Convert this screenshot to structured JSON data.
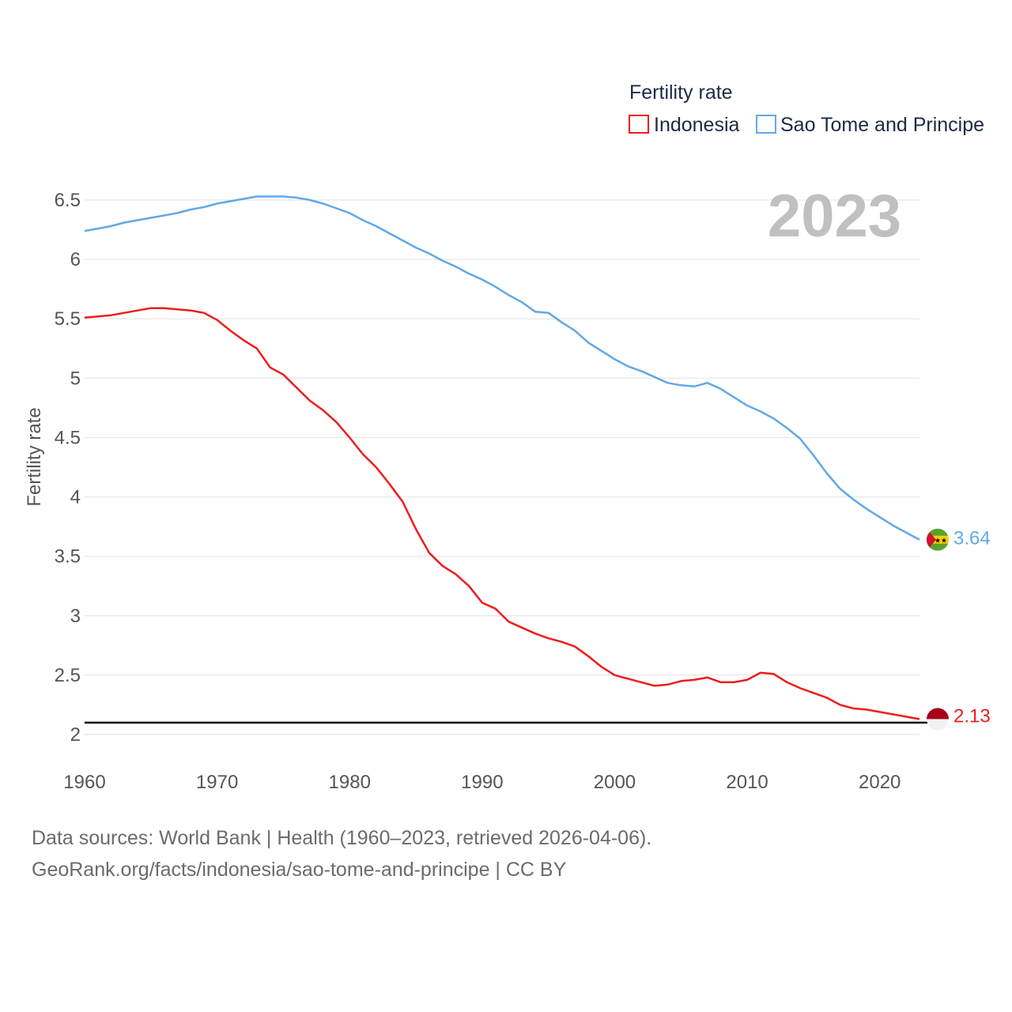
{
  "chart_data": {
    "type": "line",
    "title": "Fertility rate",
    "ylabel": "Fertility rate",
    "xlabel": "",
    "year_label": "2023",
    "xlim": [
      1960,
      2023
    ],
    "ylim": [
      1.85,
      6.75
    ],
    "x_ticks": [
      1960,
      1970,
      1980,
      1990,
      2000,
      2010,
      2020
    ],
    "y_ticks": [
      {
        "value": 2,
        "label": "2"
      },
      {
        "value": 2.5,
        "label": "2.5"
      },
      {
        "value": 3,
        "label": "3"
      },
      {
        "value": 3.5,
        "label": "3.5"
      },
      {
        "value": 4,
        "label": "4"
      },
      {
        "value": 4.5,
        "label": "4.5"
      },
      {
        "value": 5,
        "label": "5"
      },
      {
        "value": 5.5,
        "label": "5.5"
      },
      {
        "value": 6,
        "label": "6"
      },
      {
        "value": 6.5,
        "label": "6.5"
      }
    ],
    "reference_line": 2.1,
    "series": [
      {
        "name": "Indonesia",
        "color": "#ee1c1c",
        "end_label": "2.13",
        "flag": "flag-indonesia-icon",
        "x": [
          1960,
          1961,
          1962,
          1963,
          1964,
          1965,
          1966,
          1967,
          1968,
          1969,
          1970,
          1971,
          1972,
          1973,
          1974,
          1975,
          1976,
          1977,
          1978,
          1979,
          1980,
          1981,
          1982,
          1983,
          1984,
          1985,
          1986,
          1987,
          1988,
          1989,
          1990,
          1991,
          1992,
          1993,
          1994,
          1995,
          1996,
          1997,
          1998,
          1999,
          2000,
          2001,
          2002,
          2003,
          2004,
          2005,
          2006,
          2007,
          2008,
          2009,
          2010,
          2011,
          2012,
          2013,
          2014,
          2015,
          2016,
          2017,
          2018,
          2019,
          2020,
          2021,
          2022,
          2023
        ],
        "values": [
          5.51,
          5.52,
          5.53,
          5.55,
          5.57,
          5.59,
          5.59,
          5.58,
          5.57,
          5.55,
          5.49,
          5.4,
          5.32,
          5.25,
          5.09,
          5.03,
          4.92,
          4.81,
          4.73,
          4.63,
          4.5,
          4.36,
          4.25,
          4.11,
          3.96,
          3.73,
          3.53,
          3.42,
          3.35,
          3.25,
          3.11,
          3.06,
          2.95,
          2.9,
          2.85,
          2.81,
          2.78,
          2.74,
          2.66,
          2.57,
          2.5,
          2.47,
          2.44,
          2.41,
          2.42,
          2.45,
          2.46,
          2.48,
          2.44,
          2.44,
          2.46,
          2.52,
          2.51,
          2.44,
          2.39,
          2.35,
          2.31,
          2.25,
          2.22,
          2.21,
          2.19,
          2.17,
          2.15,
          2.13
        ]
      },
      {
        "name": "Sao Tome and Principe",
        "color": "#62a8e8",
        "end_label": "3.64",
        "flag": "flag-sao-tome-and-principe-icon",
        "x": [
          1960,
          1961,
          1962,
          1963,
          1964,
          1965,
          1966,
          1967,
          1968,
          1969,
          1970,
          1971,
          1972,
          1973,
          1974,
          1975,
          1976,
          1977,
          1978,
          1979,
          1980,
          1981,
          1982,
          1983,
          1984,
          1985,
          1986,
          1987,
          1988,
          1989,
          1990,
          1991,
          1992,
          1993,
          1994,
          1995,
          1996,
          1997,
          1998,
          1999,
          2000,
          2001,
          2002,
          2003,
          2004,
          2005,
          2006,
          2007,
          2008,
          2009,
          2010,
          2011,
          2012,
          2013,
          2014,
          2015,
          2016,
          2017,
          2018,
          2019,
          2020,
          2021,
          2022,
          2023
        ],
        "values": [
          6.24,
          6.26,
          6.28,
          6.31,
          6.33,
          6.35,
          6.37,
          6.39,
          6.42,
          6.44,
          6.47,
          6.49,
          6.51,
          6.53,
          6.53,
          6.53,
          6.52,
          6.5,
          6.47,
          6.43,
          6.39,
          6.33,
          6.28,
          6.22,
          6.16,
          6.1,
          6.05,
          5.99,
          5.94,
          5.88,
          5.83,
          5.77,
          5.7,
          5.64,
          5.56,
          5.55,
          5.47,
          5.4,
          5.3,
          5.23,
          5.16,
          5.1,
          5.06,
          5.01,
          4.96,
          4.94,
          4.93,
          4.96,
          4.91,
          4.84,
          4.77,
          4.72,
          4.66,
          4.58,
          4.49,
          4.35,
          4.2,
          4.07,
          3.98,
          3.9,
          3.83,
          3.76,
          3.7,
          3.64
        ]
      }
    ]
  },
  "legend": {
    "title": "Fertility rate",
    "items": [
      {
        "label": "Indonesia",
        "color": "#ee1c1c"
      },
      {
        "label": "Sao Tome and Principe",
        "color": "#62a8e8"
      }
    ]
  },
  "source": {
    "line1": "Data sources: World Bank | Health (1960–2023, retrieved 2026-04-06).",
    "line2": "GeoRank.org/facts/indonesia/sao-tome-and-principe | CC BY"
  }
}
